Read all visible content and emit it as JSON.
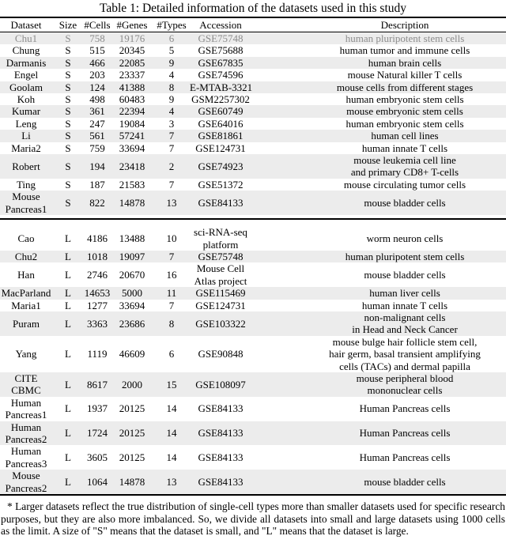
{
  "title": "Table 1: Detailed information of the datasets used in this study",
  "colors": {
    "row_stripe": "#ececec",
    "muted_row_text": "#8c8c8c"
  },
  "table": {
    "columns": [
      "Dataset",
      "Size",
      "#Cells",
      "#Genes",
      "#Types",
      "Accession",
      "Description"
    ],
    "sections": [
      {
        "name": "small-datasets",
        "rows": [
          {
            "dataset": "Chu1",
            "size": "S",
            "cells": "758",
            "genes": "19176",
            "types": "6",
            "accession": "GSE75748",
            "description": "human pluripotent stem cells",
            "muted": true
          },
          {
            "dataset": "Chung",
            "size": "S",
            "cells": "515",
            "genes": "20345",
            "types": "5",
            "accession": "GSE75688",
            "description": "human tumor and immune cells"
          },
          {
            "dataset": "Darmanis",
            "size": "S",
            "cells": "466",
            "genes": "22085",
            "types": "9",
            "accession": "GSE67835",
            "description": "human brain cells"
          },
          {
            "dataset": "Engel",
            "size": "S",
            "cells": "203",
            "genes": "23337",
            "types": "4",
            "accession": "GSE74596",
            "description": "mouse Natural killer T cells"
          },
          {
            "dataset": "Goolam",
            "size": "S",
            "cells": "124",
            "genes": "41388",
            "types": "8",
            "accession": "E-MTAB-3321",
            "description": "mouse cells from different stages"
          },
          {
            "dataset": "Koh",
            "size": "S",
            "cells": "498",
            "genes": "60483",
            "types": "9",
            "accession": "GSM2257302",
            "description": "human embryonic stem cells"
          },
          {
            "dataset": "Kumar",
            "size": "S",
            "cells": "361",
            "genes": "22394",
            "types": "4",
            "accession": "GSE60749",
            "description": "mouse embryonic stem cells"
          },
          {
            "dataset": "Leng",
            "size": "S",
            "cells": "247",
            "genes": "19084",
            "types": "3",
            "accession": "GSE64016",
            "description": "human embryonic stem cells"
          },
          {
            "dataset": "Li",
            "size": "S",
            "cells": "561",
            "genes": "57241",
            "types": "7",
            "accession": "GSE81861",
            "description": "human cell lines"
          },
          {
            "dataset": "Maria2",
            "size": "S",
            "cells": "759",
            "genes": "33694",
            "types": "7",
            "accession": "GSE124731",
            "description": "human innate T cells"
          },
          {
            "dataset": "Robert",
            "size": "S",
            "cells": "194",
            "genes": "23418",
            "types": "2",
            "accession": "GSE74923",
            "description": "mouse leukemia cell line\nand primary CD8+ T-cells"
          },
          {
            "dataset": "Ting",
            "size": "S",
            "cells": "187",
            "genes": "21583",
            "types": "7",
            "accession": "GSE51372",
            "description": "mouse circulating tumor cells"
          },
          {
            "dataset": "Mouse\nPancreas1",
            "size": "S",
            "cells": "822",
            "genes": "14878",
            "types": "13",
            "accession": "GSE84133",
            "description": "mouse bladder cells"
          }
        ]
      },
      {
        "name": "large-datasets",
        "rows": [
          {
            "dataset": "Cao",
            "size": "L",
            "cells": "4186",
            "genes": "13488",
            "types": "10",
            "accession": "sci-RNA-seq\nplatform",
            "description": "worm neuron cells"
          },
          {
            "dataset": "Chu2",
            "size": "L",
            "cells": "1018",
            "genes": "19097",
            "types": "7",
            "accession": "GSE75748",
            "description": "human pluripotent stem cells"
          },
          {
            "dataset": "Han",
            "size": "L",
            "cells": "2746",
            "genes": "20670",
            "types": "16",
            "accession": "Mouse Cell\nAtlas project",
            "description": "mouse bladder cells"
          },
          {
            "dataset": "MacParland",
            "size": "L",
            "cells": "14653",
            "genes": "5000",
            "types": "11",
            "accession": "GSE115469",
            "description": "human liver cells"
          },
          {
            "dataset": "Maria1",
            "size": "L",
            "cells": "1277",
            "genes": "33694",
            "types": "7",
            "accession": "GSE124731",
            "description": "human innate T cells"
          },
          {
            "dataset": "Puram",
            "size": "L",
            "cells": "3363",
            "genes": "23686",
            "types": "8",
            "accession": "GSE103322",
            "description": "non-malignant cells\nin Head and Neck Cancer"
          },
          {
            "dataset": "Yang",
            "size": "L",
            "cells": "1119",
            "genes": "46609",
            "types": "6",
            "accession": "GSE90848",
            "description": "mouse bulge hair follicle stem cell,\nhair germ, basal transient amplifying\ncells (TACs) and dermal papilla"
          },
          {
            "dataset": "CITE\nCBMC",
            "size": "L",
            "cells": "8617",
            "genes": "2000",
            "types": "15",
            "accession": "GSE108097",
            "description": "mouse peripheral blood\nmononuclear cells"
          },
          {
            "dataset": "Human\nPancreas1",
            "size": "L",
            "cells": "1937",
            "genes": "20125",
            "types": "14",
            "accession": "GSE84133",
            "description": "Human Pancreas cells"
          },
          {
            "dataset": "Human\nPancreas2",
            "size": "L",
            "cells": "1724",
            "genes": "20125",
            "types": "14",
            "accession": "GSE84133",
            "description": "Human Pancreas cells"
          },
          {
            "dataset": "Human\nPancreas3",
            "size": "L",
            "cells": "3605",
            "genes": "20125",
            "types": "14",
            "accession": "GSE84133",
            "description": "Human Pancreas cells"
          },
          {
            "dataset": "Mouse\nPancreas2",
            "size": "L",
            "cells": "1064",
            "genes": "14878",
            "types": "13",
            "accession": "GSE84133",
            "description": "mouse bladder cells"
          }
        ]
      }
    ]
  },
  "footnote": "* Larger datasets reflect the true distribution of single-cell types more than smaller datasets used for specific research purposes, but they are also more imbalanced. So, we divide all datasets into small and large datasets using 1000 cells as the limit. A size of \"S\" means that the dataset is small, and \"L\" means that the dataset is large."
}
